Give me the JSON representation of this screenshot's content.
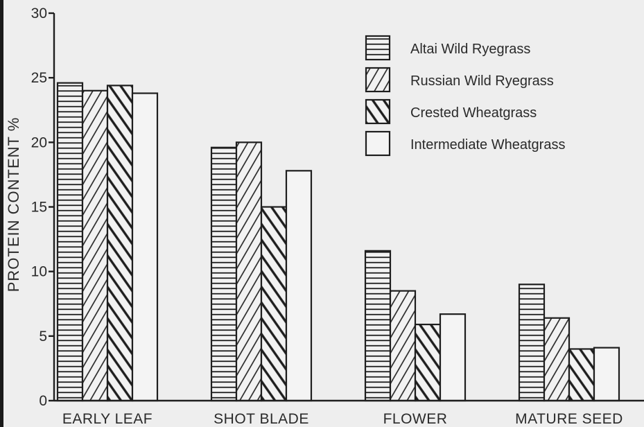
{
  "chart_data": {
    "type": "bar",
    "title": "",
    "xlabel": "",
    "ylabel": "PROTEIN CONTENT %",
    "ylim": [
      0,
      30
    ],
    "yticks": [
      "0",
      "5",
      "10",
      "15",
      "20",
      "25",
      "30"
    ],
    "categories": [
      "EARLY LEAF",
      "SHOT BLADE",
      "FLOWER",
      "MATURE SEED"
    ],
    "series": [
      {
        "name": "Altai Wild Ryegrass",
        "pattern": "horizontal-lines",
        "values": [
          24.6,
          19.6,
          11.6,
          9.0
        ]
      },
      {
        "name": "Russian Wild Ryegrass",
        "pattern": "forward-diagonal",
        "values": [
          24.0,
          20.0,
          8.5,
          6.4
        ]
      },
      {
        "name": "Crested Wheatgrass",
        "pattern": "backward-diagonal",
        "values": [
          24.4,
          15.0,
          5.9,
          4.0
        ]
      },
      {
        "name": "Intermediate Wheatgrass",
        "pattern": "none",
        "values": [
          23.8,
          17.8,
          6.7,
          4.1
        ]
      }
    ],
    "legend_position": "top-right",
    "grid": false,
    "colors": {
      "background": "#eeeeee",
      "ink": "#1e1e1e"
    }
  }
}
